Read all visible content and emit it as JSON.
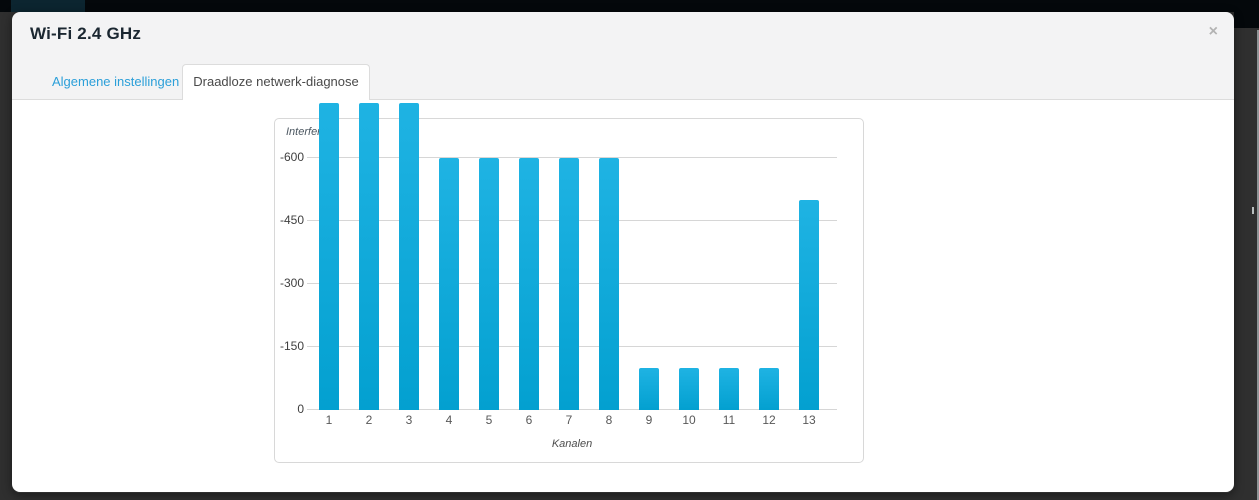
{
  "page": {
    "background_color": "#2f2f2f",
    "topbar_color": "#04080b"
  },
  "modal": {
    "title": "Wi-Fi 2.4 GHz",
    "close_glyph": "×",
    "header_color": "#f3f3f4",
    "accent_link_color": "#2b9fd9"
  },
  "tabs": [
    {
      "label": "Algemene instellingen",
      "active": false
    },
    {
      "label": "Draadloze netwerk-diagnose",
      "active": true
    }
  ],
  "chart_data": {
    "type": "bar",
    "ylabel": "Interfere",
    "xlabel": "Kanalen",
    "categories": [
      "1",
      "2",
      "3",
      "4",
      "5",
      "6",
      "7",
      "8",
      "9",
      "10",
      "11",
      "12",
      "13"
    ],
    "values": [
      -730,
      -730,
      -730,
      -600,
      -600,
      -600,
      -600,
      -600,
      -100,
      -100,
      -100,
      -100,
      -500
    ],
    "y_ticks": [
      -600,
      -450,
      -300,
      -150,
      0
    ],
    "y_axis_inverted": true,
    "ylim": [
      0,
      -700
    ],
    "grid": true,
    "legend": false,
    "bar_color_top": "#1fb3e3",
    "bar_color_bottom": "#03a0d0"
  }
}
